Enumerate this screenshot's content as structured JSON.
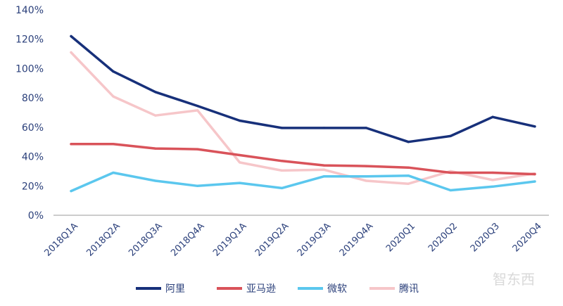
{
  "chart_data": {
    "type": "line",
    "title": "",
    "xlabel": "",
    "ylabel": "",
    "categories": [
      "2018Q1A",
      "2018Q2A",
      "2018Q3A",
      "2018Q4A",
      "2019Q1A",
      "2019Q2A",
      "2019Q3A",
      "2019Q4A",
      "2020Q1",
      "2020Q2",
      "2020Q3",
      "2020Q4"
    ],
    "y_ticks": [
      "0%",
      "20%",
      "40%",
      "60%",
      "80%",
      "100%",
      "120%",
      "140%"
    ],
    "ylim": [
      0,
      1.4
    ],
    "grid": false,
    "legend_position": "bottom",
    "series": [
      {
        "name": "阿里",
        "color": "#17307a",
        "values": [
          1.22,
          0.98,
          0.84,
          0.745,
          0.645,
          0.595,
          0.595,
          0.595,
          0.5,
          0.54,
          0.67,
          0.605
        ]
      },
      {
        "name": "亚马逊",
        "color": "#d9535a",
        "values": [
          0.485,
          0.485,
          0.455,
          0.45,
          0.41,
          0.37,
          0.34,
          0.335,
          0.325,
          0.29,
          0.29,
          0.28
        ]
      },
      {
        "name": "微软",
        "color": "#5bc7ee",
        "values": [
          0.165,
          0.29,
          0.235,
          0.2,
          0.22,
          0.185,
          0.265,
          0.265,
          0.27,
          0.17,
          0.195,
          0.23
        ]
      },
      {
        "name": "腾讯",
        "color": "#f6c6c9",
        "values": [
          1.11,
          0.81,
          0.68,
          0.715,
          0.36,
          0.305,
          0.31,
          0.235,
          0.215,
          0.3,
          0.24,
          0.285
        ]
      }
    ]
  },
  "watermark": "智东西"
}
